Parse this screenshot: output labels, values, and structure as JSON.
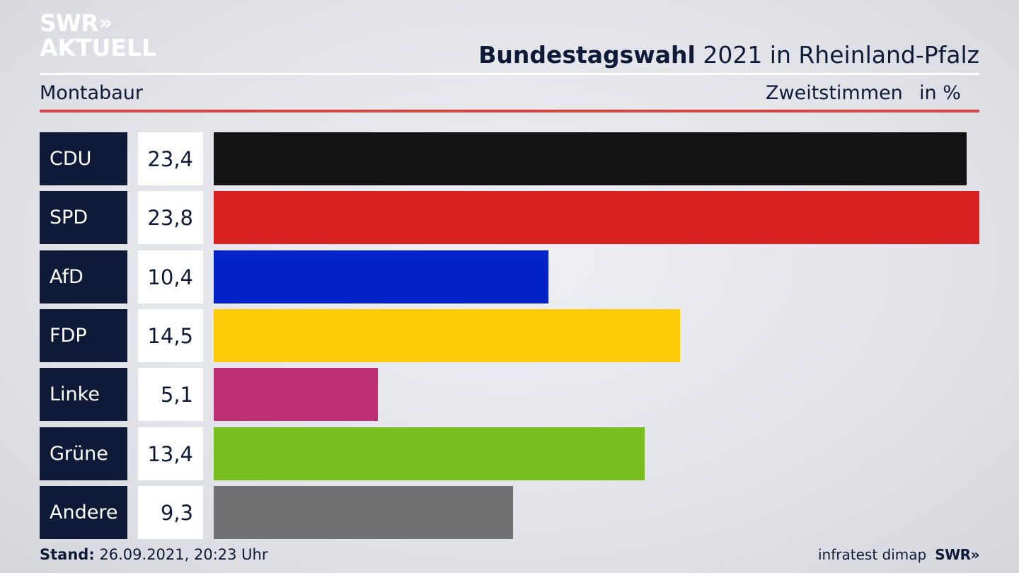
{
  "brand": {
    "line1": "SWR",
    "line1_arrows": "»",
    "line2": "AKTUELL"
  },
  "header": {
    "title_bold": "Bundestagswahl",
    "title_rest": " 2021 in Rheinland-Pfalz",
    "region": "Montabaur",
    "unit_label": "Zweitstimmen",
    "unit_suffix": "in %"
  },
  "chart_data": {
    "type": "bar",
    "orientation": "horizontal",
    "categories": [
      "CDU",
      "SPD",
      "AfD",
      "FDP",
      "Linke",
      "Grüne",
      "Andere"
    ],
    "values": [
      23.4,
      23.8,
      10.4,
      14.5,
      5.1,
      13.4,
      9.3
    ],
    "value_labels": [
      "23,4",
      "23,8",
      "10,4",
      "14,5",
      "5,1",
      "13,4",
      "9,3"
    ],
    "colors": [
      "#131313",
      "#d82020",
      "#0322c8",
      "#fecb0a",
      "#be3075",
      "#78be1e",
      "#717174"
    ],
    "xlim": [
      0,
      23.8
    ],
    "unit": "%",
    "grid": false,
    "legend": "none"
  },
  "footer": {
    "stand_label": "Stand:",
    "stand_value": " 26.09.2021, 20:23 Uhr",
    "source": "infratest dimap",
    "source_brand": "SWR»"
  }
}
